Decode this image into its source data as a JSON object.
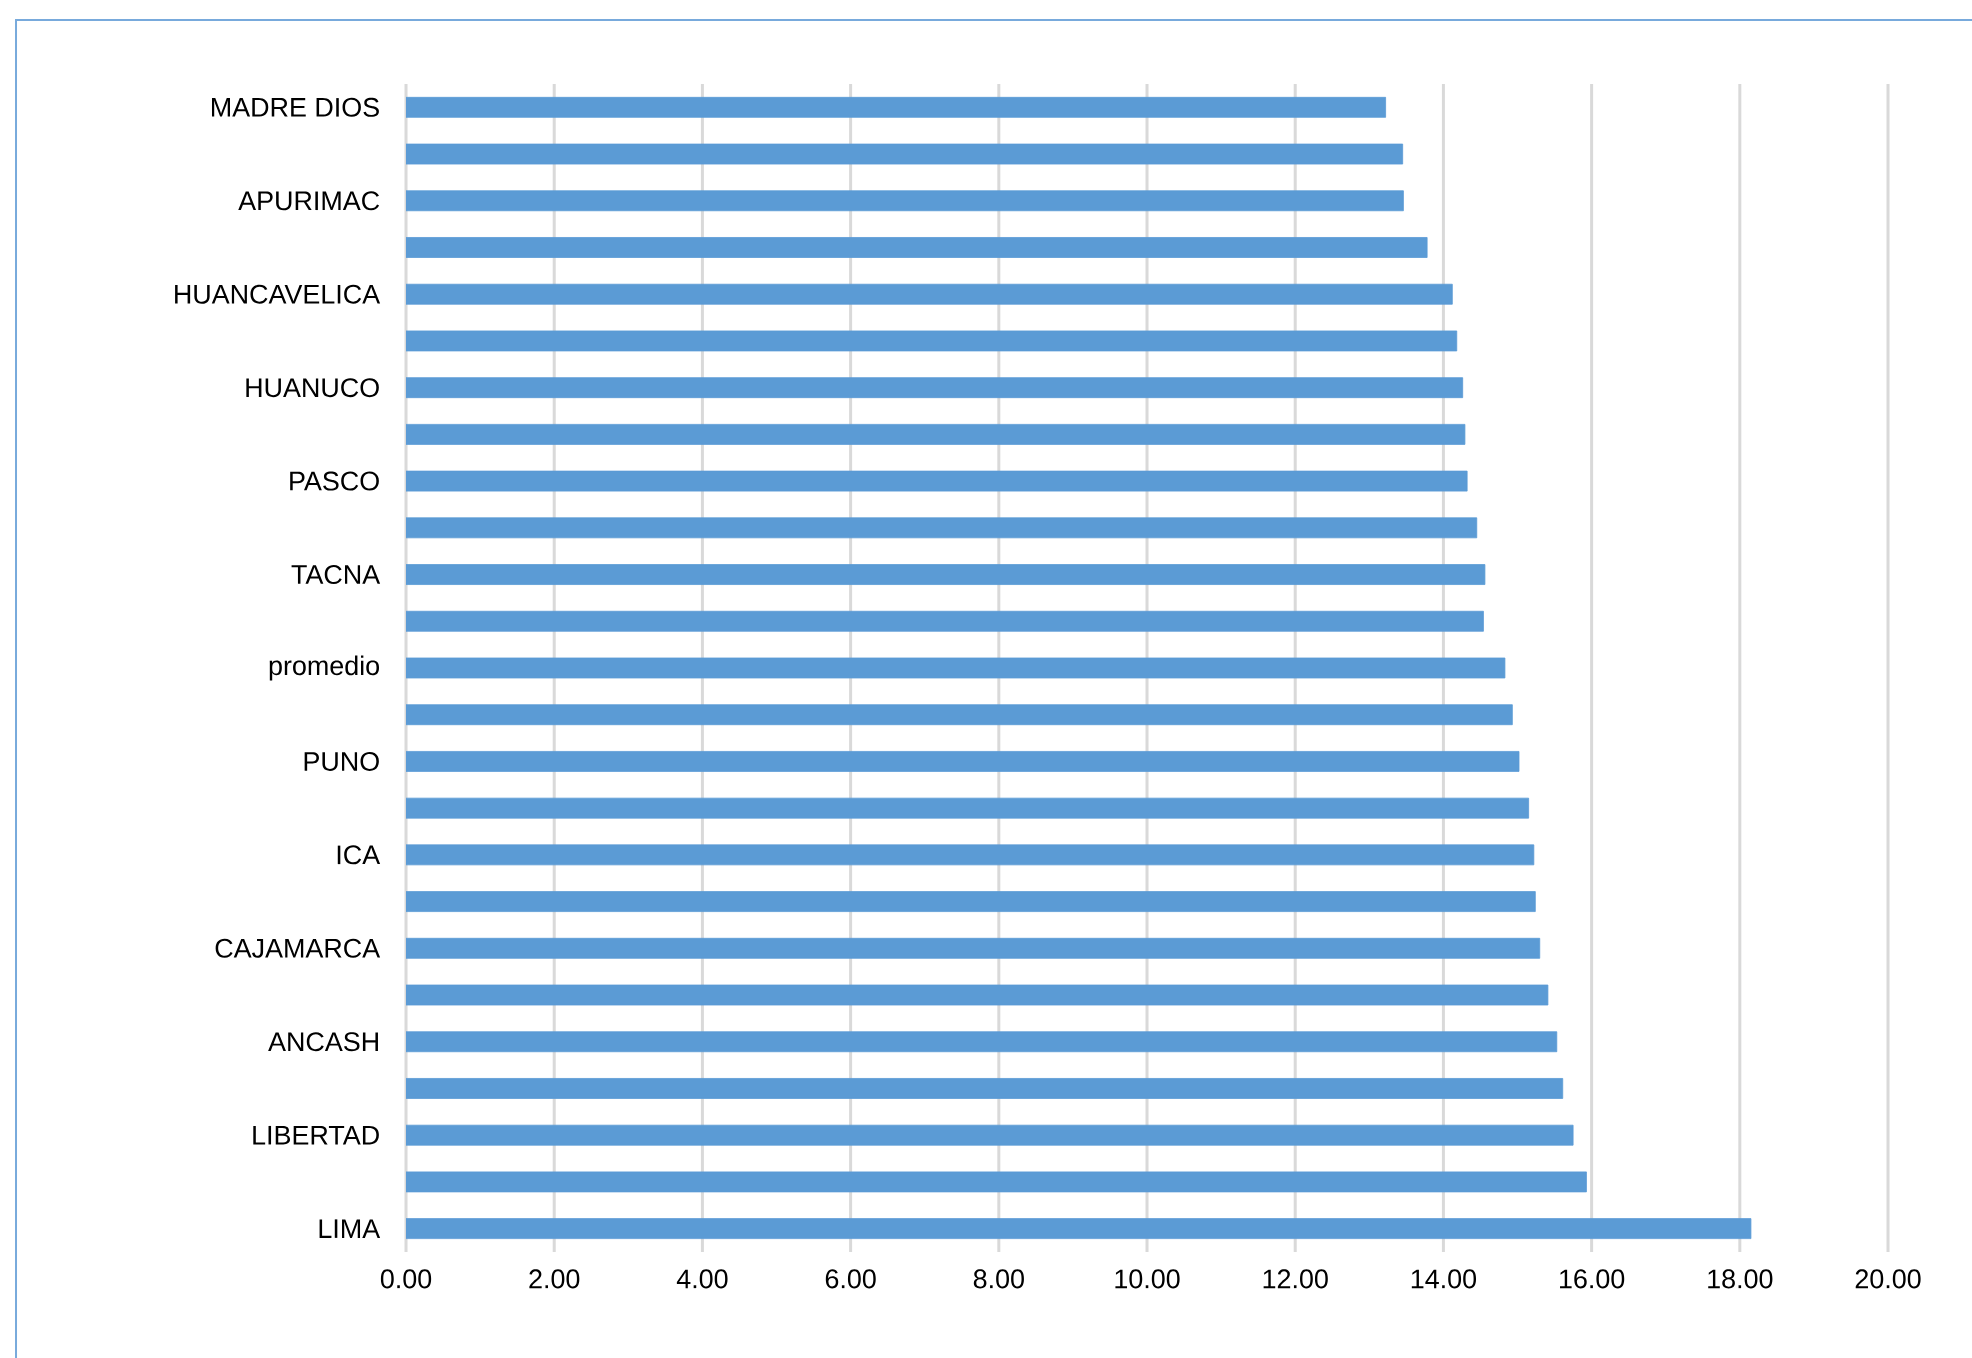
{
  "chart_data": {
    "type": "bar",
    "orientation": "horizontal",
    "color": "#5b9bd5",
    "grid": "x",
    "categories": [
      "MADRE DIOS",
      null,
      "APURIMAC",
      null,
      "HUANCAVELICA",
      null,
      "HUANUCO",
      null,
      "PASCO",
      null,
      "TACNA",
      null,
      "promedio",
      null,
      "PUNO",
      null,
      "ICA",
      null,
      "CAJAMARCA",
      null,
      "ANCASH",
      null,
      "LIBERTAD",
      null,
      "LIMA"
    ],
    "values": [
      13.22,
      13.45,
      13.46,
      13.78,
      14.12,
      14.18,
      14.26,
      14.29,
      14.32,
      14.45,
      14.56,
      14.54,
      14.83,
      14.93,
      15.02,
      15.15,
      15.22,
      15.24,
      15.3,
      15.41,
      15.53,
      15.61,
      15.75,
      15.93,
      18.15
    ],
    "xlim": [
      0,
      20
    ],
    "xticks": [
      {
        "value": 0,
        "label": "0.00"
      },
      {
        "value": 2,
        "label": "2.00"
      },
      {
        "value": 4,
        "label": "4.00"
      },
      {
        "value": 6,
        "label": "6.00"
      },
      {
        "value": 8,
        "label": "8.00"
      },
      {
        "value": 10,
        "label": "10.00"
      },
      {
        "value": 12,
        "label": "12.00"
      },
      {
        "value": 14,
        "label": "14.00"
      },
      {
        "value": 16,
        "label": "16.00"
      },
      {
        "value": 18,
        "label": "18.00"
      },
      {
        "value": 20,
        "label": "20.00"
      }
    ]
  }
}
